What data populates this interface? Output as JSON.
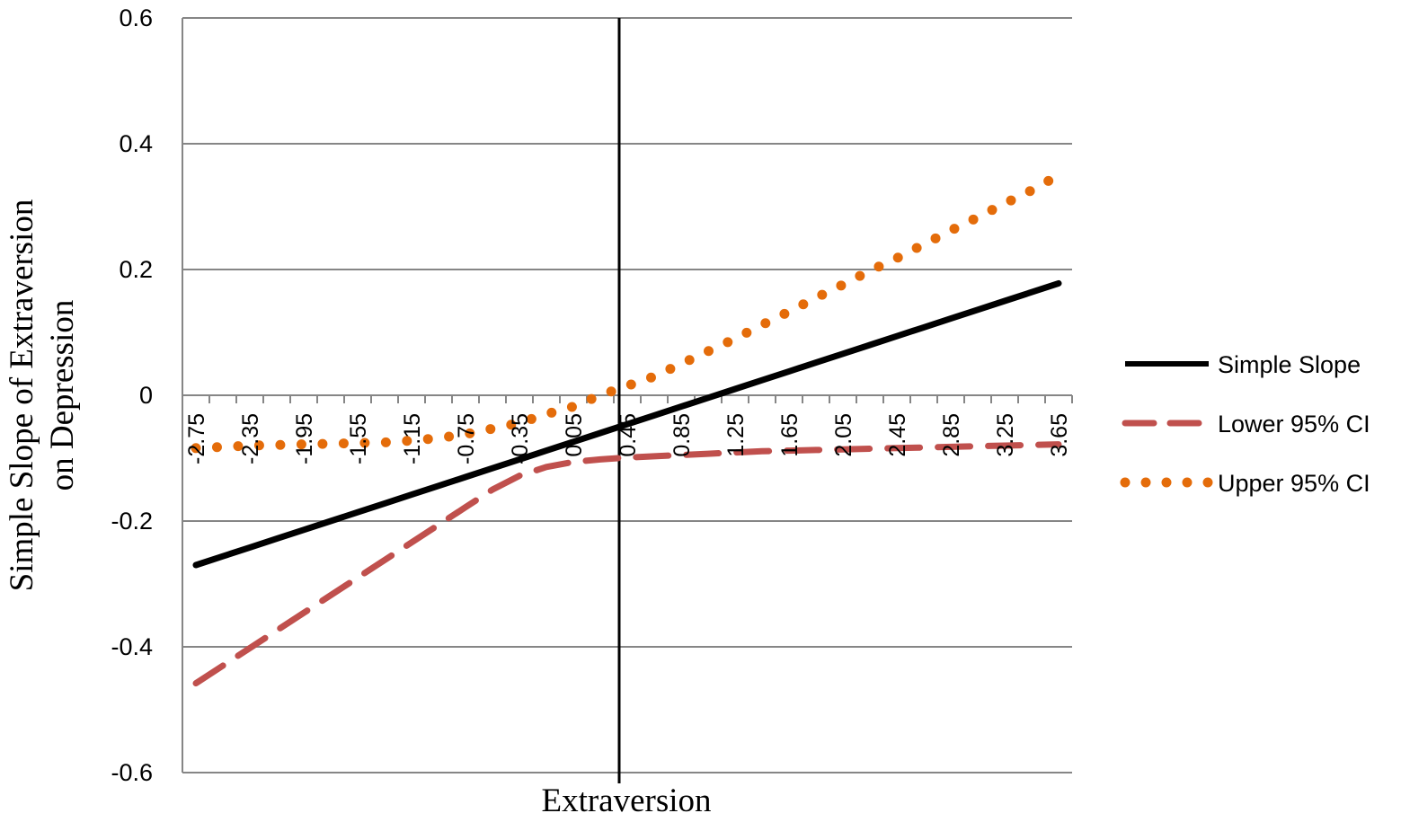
{
  "chart_data": {
    "type": "line",
    "title": "",
    "xlabel": "Extraversion",
    "ylabel": "Simple Slope of Extraversion on Depression",
    "ylabel_lines": [
      "Simple Slope of Extraversion",
      "on Depression"
    ],
    "ylim": [
      -0.6,
      0.6
    ],
    "yticks": [
      -0.6,
      -0.4,
      -0.2,
      0,
      0.2,
      0.4,
      0.6
    ],
    "ytick_labels": [
      "-0.6",
      "-0.4",
      "-0.2",
      "0",
      "0.2",
      "0.4",
      "0.6"
    ],
    "xtick_labels": [
      "-2.75",
      "-2.35",
      "-1.95",
      "-1.55",
      "-1.15",
      "-0.75",
      "-0.35",
      "0.05",
      "0.45",
      "0.85",
      "1.25",
      "1.65",
      "2.05",
      "2.45",
      "2.85",
      "3.25",
      "3.65"
    ],
    "x": [
      -2.75,
      -2.55,
      -2.35,
      -2.15,
      -1.95,
      -1.75,
      -1.55,
      -1.35,
      -1.15,
      -0.95,
      -0.75,
      -0.55,
      -0.35,
      -0.15,
      0.05,
      0.25,
      0.45,
      0.65,
      0.85,
      1.05,
      1.25,
      1.45,
      1.65,
      1.85,
      2.05,
      2.25,
      2.45,
      2.65,
      2.85,
      3.05,
      3.25,
      3.45,
      3.65
    ],
    "xlim": [
      -2.85,
      3.75
    ],
    "vertical_line_x": 0.39,
    "grid": true,
    "legend_position": "right",
    "series": [
      {
        "name": "Simple Slope",
        "color": "#000000",
        "style": "solid",
        "values": [
          -0.27,
          -0.256,
          -0.242,
          -0.228,
          -0.214,
          -0.2,
          -0.186,
          -0.172,
          -0.158,
          -0.144,
          -0.13,
          -0.116,
          -0.102,
          -0.088,
          -0.074,
          -0.06,
          -0.046,
          -0.032,
          -0.018,
          -0.004,
          0.01,
          0.024,
          0.038,
          0.052,
          0.066,
          0.08,
          0.094,
          0.108,
          0.122,
          0.136,
          0.15,
          0.164,
          0.178
        ]
      },
      {
        "name": "Lower 95% CI",
        "color": "#c0504d",
        "style": "dashed",
        "values": [
          -0.458,
          -0.43,
          -0.402,
          -0.374,
          -0.346,
          -0.318,
          -0.29,
          -0.262,
          -0.234,
          -0.206,
          -0.178,
          -0.15,
          -0.128,
          -0.114,
          -0.106,
          -0.102,
          -0.099,
          -0.097,
          -0.095,
          -0.093,
          -0.091,
          -0.089,
          -0.088,
          -0.087,
          -0.086,
          -0.085,
          -0.084,
          -0.083,
          -0.082,
          -0.081,
          -0.08,
          -0.079,
          -0.078
        ]
      },
      {
        "name": "Upper 95% CI",
        "color": "#e46c0a",
        "style": "dotted",
        "values": [
          -0.084,
          -0.082,
          -0.08,
          -0.079,
          -0.078,
          -0.077,
          -0.076,
          -0.075,
          -0.072,
          -0.068,
          -0.062,
          -0.053,
          -0.044,
          -0.03,
          -0.018,
          0.0,
          0.015,
          0.03,
          0.05,
          0.07,
          0.09,
          0.112,
          0.133,
          0.155,
          0.176,
          0.198,
          0.218,
          0.24,
          0.262,
          0.283,
          0.305,
          0.326,
          0.35
        ]
      }
    ]
  }
}
